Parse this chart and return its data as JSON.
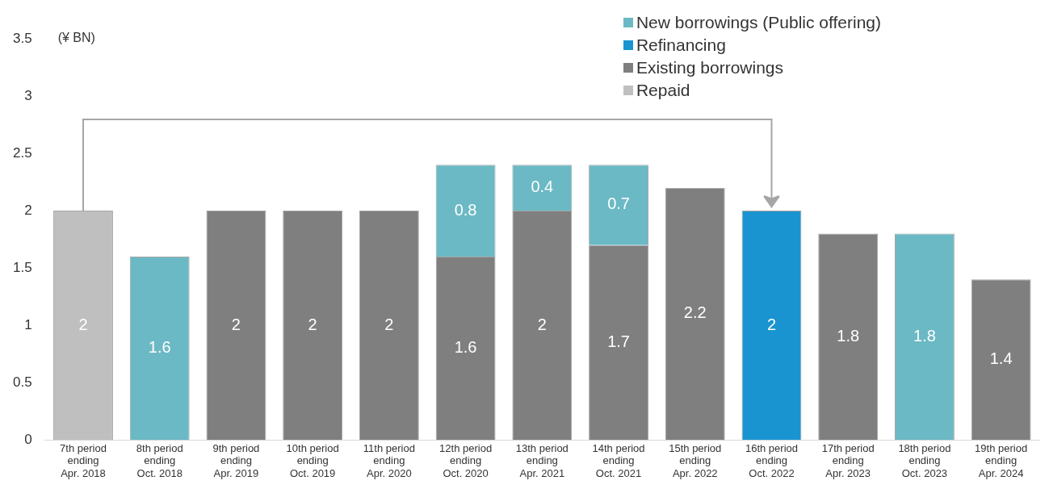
{
  "chart_data": {
    "type": "bar",
    "stacked": true,
    "ylabel": "(¥ BN)",
    "categories": [
      "7th period\nending\nApr. 2018",
      "8th period\nending\nOct. 2018",
      "9th period\nending\nApr. 2019",
      "10th period\nending\nOct. 2019",
      "11th period\nending\nApr. 2020",
      "12th period\nending\nOct. 2020",
      "13th period\nending\nApr. 2021",
      "14th period\nending\nOct. 2021",
      "15th period\nending\nApr. 2022",
      "16th period\nending\nOct. 2022",
      "17th period\nending\nApr. 2023",
      "18th period\nending\nOct. 2023",
      "19th period\nending\nApr. 2024"
    ],
    "series": [
      {
        "name": "Repaid",
        "color": "#bfbfbf",
        "values": [
          2,
          null,
          null,
          null,
          null,
          null,
          null,
          null,
          null,
          null,
          null,
          null,
          null
        ]
      },
      {
        "name": "Existing borrowings",
        "color": "#7f7f7f",
        "values": [
          null,
          null,
          2,
          2,
          2,
          1.6,
          2,
          1.7,
          2.2,
          null,
          1.8,
          null,
          1.4
        ]
      },
      {
        "name": "Refinancing",
        "color": "#1a94d0",
        "values": [
          null,
          null,
          null,
          null,
          null,
          null,
          null,
          null,
          null,
          2,
          null,
          null,
          null
        ]
      },
      {
        "name": "New borrowings (Public offering)",
        "color": "#6bb9c4",
        "values": [
          null,
          1.6,
          null,
          null,
          null,
          0.8,
          0.4,
          0.7,
          null,
          null,
          null,
          1.8,
          null
        ]
      }
    ],
    "ylim": [
      0,
      3.5
    ],
    "yticks": [
      0,
      0.5,
      1,
      1.5,
      2,
      2.5,
      3,
      3.5
    ],
    "grid": false,
    "legend": "top right",
    "data_labels": true
  }
}
